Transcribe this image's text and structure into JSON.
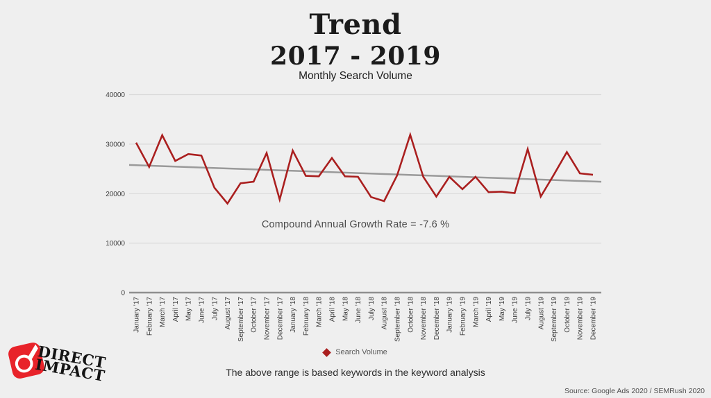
{
  "page": {
    "background": "#efefef"
  },
  "header": {
    "title": "Trend",
    "subtitle": "2017 - 2019",
    "caption": "Monthly Search Volume"
  },
  "annotation": "Compound Annual Growth Rate = -7.6 %",
  "legend": {
    "label": "Search Volume",
    "marker_color": "#aa1f1f"
  },
  "footnote": "The above range is based keywords in the keyword analysis",
  "source": "Source: Google Ads 2020 / SEMRush 2020",
  "logo": {
    "line1": "DIRECT",
    "line2": "IMPACT",
    "icon_color": "#e8232a"
  },
  "colors": {
    "series": "#aa1f1f",
    "trend": "#9a9a9a",
    "grid": "#d9d9d9",
    "axis": "#8f8f8f",
    "tick_text": "#3d3d3d"
  },
  "chart_data": {
    "type": "line",
    "title": "Trend 2017 - 2019 Monthly Search Volume",
    "xlabel": "",
    "ylabel": "",
    "ylim": [
      0,
      40000
    ],
    "yticks": [
      0,
      10000,
      20000,
      30000,
      40000
    ],
    "grid": true,
    "legend_position": "bottom",
    "annotation": "Compound Annual Growth Rate = -7.6 %",
    "x": [
      "January ’17",
      "February ’17",
      "March ’17",
      "April ’17",
      "May ’17",
      "June ’17",
      "July ’17",
      "August ’17",
      "September ’17",
      "October ’17",
      "November ’17",
      "December ’17",
      "January ’18",
      "February ’18",
      "March ’18",
      "April ’18",
      "May ’18",
      "June ’18",
      "July ’18",
      "August ’18",
      "September ’18",
      "October ’18",
      "November ’18",
      "December ’18",
      "January ’19",
      "February ’19",
      "March ’19",
      "April ’19",
      "May ’19",
      "June ’19",
      "July ’19",
      "August ’19",
      "September ’19",
      "October ’19",
      "November ’19",
      "December ’19"
    ],
    "series": [
      {
        "name": "Search Volume",
        "color": "#aa1f1f",
        "values": [
          30300,
          25400,
          31800,
          26600,
          28000,
          27700,
          21200,
          18000,
          22100,
          22400,
          28200,
          18800,
          28700,
          23600,
          23500,
          27200,
          23500,
          23400,
          19300,
          18500,
          23700,
          31900,
          23400,
          19400,
          23400,
          20900,
          23400,
          20300,
          20400,
          20100,
          29000,
          19400,
          23800,
          28400,
          24100,
          23800
        ]
      },
      {
        "name": "Linear trend",
        "color": "#9a9a9a",
        "endpoints": [
          25800,
          22400
        ]
      }
    ]
  }
}
